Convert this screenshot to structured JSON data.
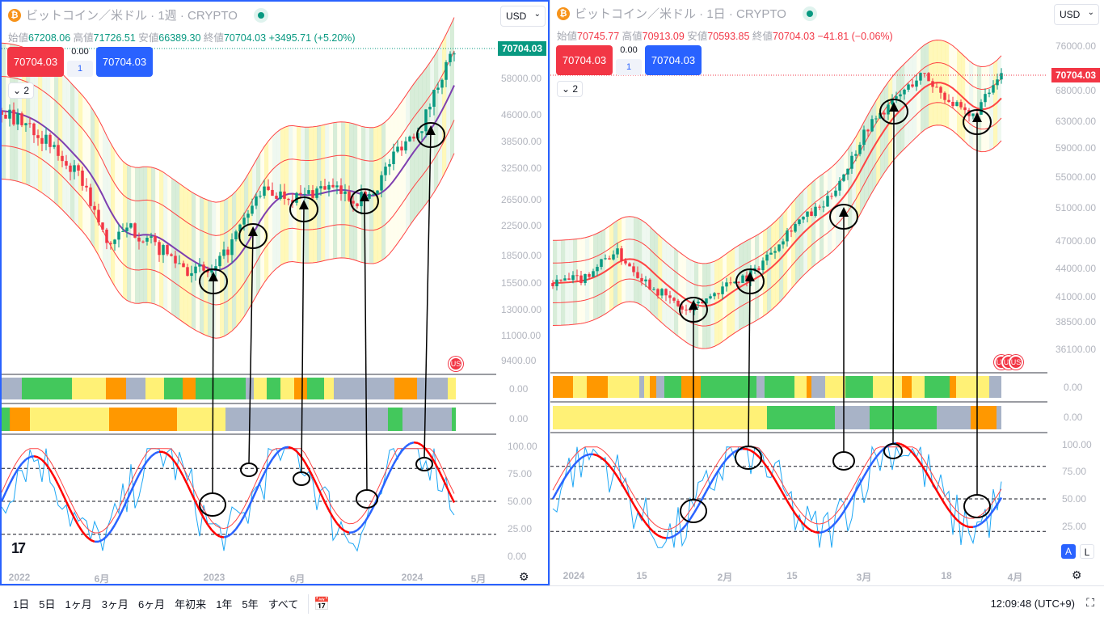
{
  "left": {
    "symbol": "ビットコイン／米ドル · 1週 · CRYPTO",
    "ohlc": {
      "open_label": "始値",
      "open": "67208.06",
      "high_label": "高値",
      "high": "71726.51",
      "low_label": "安値",
      "low": "66389.30",
      "close_label": "終値",
      "close": "70704.03",
      "change": "+3495.71 (+5.20%)"
    },
    "currency": "USD",
    "sell_price": "70704.03",
    "spread": "0.00",
    "qty": "1",
    "buy_price": "70704.03",
    "collapse_label": "2",
    "price_tag": "70704.03",
    "price_axis": [
      "58000.00",
      "46000.00",
      "38500.00",
      "32500.00",
      "26500.00",
      "22500.00",
      "18500.00",
      "15500.00",
      "13000.00",
      "11000.00",
      "9400.00"
    ],
    "strip_values": [
      "0.00",
      "0.00"
    ],
    "osc_axis": [
      "100.00",
      "75.00",
      "50.00",
      "25.00",
      "0.00"
    ],
    "time_axis": [
      "2022",
      "6月",
      "2023",
      "6月",
      "2024",
      "5月"
    ],
    "colors": {
      "change": "#089981",
      "tag": "#089981"
    }
  },
  "right": {
    "symbol": "ビットコイン／米ドル · 1日 · CRYPTO",
    "ohlc": {
      "open_label": "始値",
      "open": "70745.77",
      "high_label": "高値",
      "high": "70913.09",
      "low_label": "安値",
      "low": "70593.85",
      "close_label": "終値",
      "close": "70704.03",
      "change": "−41.81 (−0.06%)"
    },
    "currency": "USD",
    "sell_price": "70704.03",
    "spread": "0.00",
    "qty": "1",
    "buy_price": "70704.03",
    "collapse_label": "2",
    "price_tag": "70704.03",
    "price_axis": [
      "76000.00",
      "68000.00",
      "63000.00",
      "59000.00",
      "55000.00",
      "51000.00",
      "47000.00",
      "44000.00",
      "41000.00",
      "38500.00",
      "36100.00"
    ],
    "strip_values": [
      "0.00",
      "0.00"
    ],
    "osc_axis": [
      "100.00",
      "75.00",
      "50.00",
      "25.00"
    ],
    "time_axis": [
      "2024",
      "15",
      "2月",
      "15",
      "3月",
      "18",
      "4月"
    ],
    "scale_buttons": [
      "A",
      "L"
    ],
    "colors": {
      "change": "#f23645",
      "tag": "#f23645"
    }
  },
  "bottom": {
    "ranges": [
      "1日",
      "5日",
      "1ヶ月",
      "3ヶ月",
      "6ヶ月",
      "年初来",
      "1年",
      "5年",
      "すべて"
    ],
    "clock": "12:09:48 (UTC+9)"
  }
}
